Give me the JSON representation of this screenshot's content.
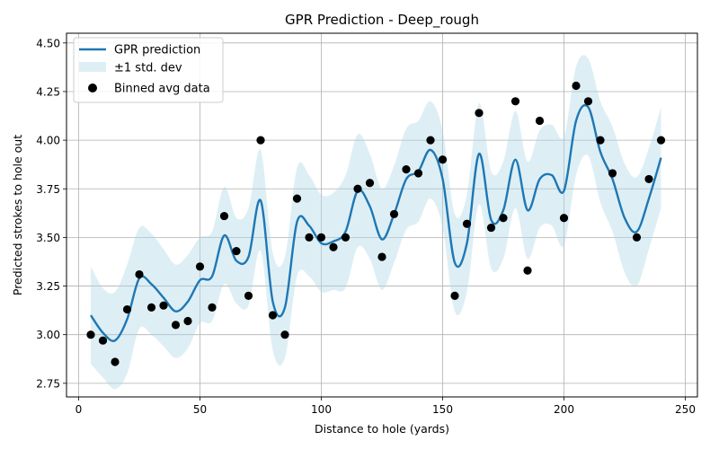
{
  "chart_data": {
    "type": "line",
    "title": "GPR Prediction - Deep_rough",
    "xlabel": "Distance to hole (yards)",
    "ylabel": "Predicted strokes to hole out",
    "xlim": [
      -5,
      255
    ],
    "ylim": [
      2.68,
      4.55
    ],
    "xticks": [
      0,
      50,
      100,
      150,
      200,
      250
    ],
    "yticks": [
      2.75,
      3.0,
      3.25,
      3.5,
      3.75,
      4.0,
      4.25,
      4.5
    ],
    "grid": true,
    "legend_position": "top-left",
    "legend": [
      "GPR prediction",
      "±1 std. dev",
      "Binned avg data"
    ],
    "colors": {
      "prediction": "#1f77b4",
      "band": "#add8e6",
      "points": "#000000"
    },
    "prediction": {
      "x": [
        5,
        10,
        15,
        20,
        25,
        30,
        35,
        40,
        45,
        50,
        55,
        60,
        65,
        70,
        75,
        80,
        85,
        90,
        95,
        100,
        105,
        110,
        115,
        120,
        125,
        130,
        135,
        140,
        145,
        150,
        155,
        160,
        165,
        170,
        175,
        180,
        185,
        190,
        195,
        200,
        205,
        210,
        215,
        220,
        225,
        230,
        235,
        240
      ],
      "y": [
        3.1,
        3.01,
        2.97,
        3.08,
        3.29,
        3.26,
        3.19,
        3.12,
        3.17,
        3.28,
        3.3,
        3.51,
        3.38,
        3.4,
        3.69,
        3.17,
        3.14,
        3.58,
        3.56,
        3.47,
        3.48,
        3.53,
        3.74,
        3.66,
        3.49,
        3.62,
        3.8,
        3.84,
        3.95,
        3.8,
        3.37,
        3.47,
        3.93,
        3.59,
        3.64,
        3.9,
        3.64,
        3.8,
        3.82,
        3.74,
        4.1,
        4.17,
        3.94,
        3.8,
        3.6,
        3.53,
        3.7,
        3.91
      ],
      "upper": [
        3.35,
        3.24,
        3.22,
        3.36,
        3.55,
        3.52,
        3.44,
        3.36,
        3.41,
        3.5,
        3.53,
        3.76,
        3.6,
        3.65,
        3.95,
        3.42,
        3.4,
        3.86,
        3.82,
        3.72,
        3.73,
        3.82,
        4.03,
        3.93,
        3.75,
        3.87,
        4.06,
        4.1,
        4.2,
        4.05,
        3.62,
        3.72,
        4.19,
        3.84,
        3.89,
        4.15,
        3.89,
        4.05,
        4.08,
        4.02,
        4.38,
        4.42,
        4.2,
        4.07,
        3.88,
        3.81,
        3.96,
        4.17
      ],
      "lower": [
        2.85,
        2.78,
        2.72,
        2.8,
        3.03,
        3.0,
        2.94,
        2.88,
        2.93,
        3.06,
        3.07,
        3.26,
        3.16,
        3.15,
        3.43,
        2.92,
        2.88,
        3.3,
        3.3,
        3.22,
        3.23,
        3.24,
        3.45,
        3.39,
        3.23,
        3.37,
        3.54,
        3.58,
        3.7,
        3.55,
        3.12,
        3.22,
        3.67,
        3.34,
        3.39,
        3.65,
        3.39,
        3.55,
        3.56,
        3.46,
        3.82,
        3.92,
        3.68,
        3.53,
        3.32,
        3.25,
        3.44,
        3.65
      ]
    },
    "binned_data": {
      "x": [
        5,
        10,
        15,
        20,
        25,
        30,
        35,
        40,
        45,
        50,
        55,
        60,
        65,
        70,
        75,
        80,
        85,
        90,
        95,
        100,
        105,
        110,
        115,
        120,
        125,
        130,
        135,
        140,
        145,
        150,
        155,
        160,
        165,
        170,
        175,
        180,
        185,
        190,
        200,
        205,
        210,
        215,
        220,
        230,
        235,
        240
      ],
      "y": [
        3.0,
        2.97,
        2.86,
        3.13,
        3.31,
        3.14,
        3.15,
        3.05,
        3.07,
        3.35,
        3.14,
        3.61,
        3.43,
        3.2,
        4.0,
        3.1,
        3.0,
        3.7,
        3.5,
        3.5,
        3.45,
        3.5,
        3.75,
        3.78,
        3.4,
        3.62,
        3.85,
        3.83,
        4.0,
        3.9,
        3.2,
        3.57,
        4.14,
        3.55,
        3.6,
        4.2,
        3.33,
        4.1,
        3.6,
        4.28,
        4.2,
        4.0,
        3.83,
        3.5,
        3.8,
        4.0
      ]
    }
  }
}
